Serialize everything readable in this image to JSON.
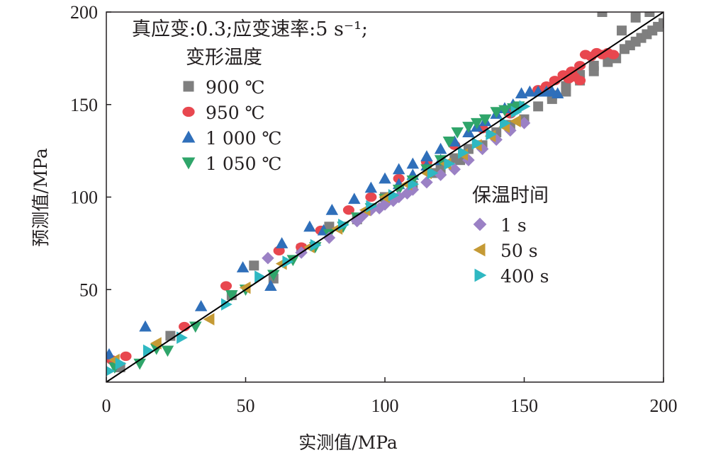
{
  "chart_data": {
    "type": "scatter",
    "title": "",
    "annotation": "真应变:0.3;应变速率:5 s⁻¹;",
    "xlabel": "实测值/MPa",
    "ylabel": "预测值/MPa",
    "xlim": [
      0,
      200
    ],
    "ylim": [
      0,
      200
    ],
    "xticks": [
      0,
      50,
      100,
      150,
      200
    ],
    "xtick_labels": [
      "0",
      "50",
      "100",
      "150",
      "200"
    ],
    "yticks": [
      50,
      100,
      150,
      200
    ],
    "ytick_labels": [
      "50",
      "100",
      "150",
      "200"
    ],
    "grid": false,
    "reference_line": {
      "x": [
        0,
        200
      ],
      "y": [
        0,
        200
      ],
      "color": "#000000"
    },
    "legend_groups": [
      {
        "title": "变形温度",
        "position": "top-left",
        "entries": [
          0,
          1,
          2,
          3
        ]
      },
      {
        "title": "保温时间",
        "position": "middle-right",
        "entries": [
          4,
          5,
          6
        ]
      }
    ],
    "series": [
      {
        "name": "900 ℃",
        "marker": "square",
        "color": "#7f7f7f",
        "points": [
          [
            5,
            8
          ],
          [
            23,
            25
          ],
          [
            45,
            47
          ],
          [
            53,
            63
          ],
          [
            60,
            56
          ],
          [
            70,
            72
          ],
          [
            80,
            84
          ],
          [
            90,
            88
          ],
          [
            100,
            100
          ],
          [
            110,
            106
          ],
          [
            118,
            113
          ],
          [
            127,
            120
          ],
          [
            135,
            128
          ],
          [
            140,
            135
          ],
          [
            145,
            139
          ],
          [
            150,
            142
          ],
          [
            155,
            149
          ],
          [
            160,
            153
          ],
          [
            165,
            157
          ],
          [
            170,
            163
          ],
          [
            175,
            168
          ],
          [
            178,
            200
          ],
          [
            180,
            173
          ],
          [
            183,
            175
          ],
          [
            186,
            180
          ],
          [
            188,
            182
          ],
          [
            190,
            184
          ],
          [
            192,
            186
          ],
          [
            194,
            188
          ],
          [
            196,
            190
          ],
          [
            198,
            192
          ],
          [
            200,
            194
          ],
          [
            185,
            190
          ],
          [
            190,
            197
          ],
          [
            195,
            200
          ],
          [
            160,
            155
          ],
          [
            165,
            160
          ],
          [
            170,
            166
          ],
          [
            175,
            171
          ],
          [
            130,
            126
          ],
          [
            125,
            121
          ],
          [
            120,
            115
          ]
        ]
      },
      {
        "name": "950 ℃",
        "marker": "circle",
        "color": "#e8474f",
        "points": [
          [
            2,
            12
          ],
          [
            7,
            14
          ],
          [
            28,
            30
          ],
          [
            43,
            52
          ],
          [
            62,
            71
          ],
          [
            70,
            73
          ],
          [
            77,
            82
          ],
          [
            87,
            93
          ],
          [
            95,
            100
          ],
          [
            105,
            110
          ],
          [
            115,
            119
          ],
          [
            125,
            128
          ],
          [
            135,
            137
          ],
          [
            145,
            145
          ],
          [
            155,
            158
          ],
          [
            158,
            160
          ],
          [
            161,
            163
          ],
          [
            164,
            166
          ],
          [
            167,
            168
          ],
          [
            170,
            171
          ],
          [
            172,
            177
          ],
          [
            174,
            176
          ],
          [
            176,
            178
          ],
          [
            178,
            177
          ],
          [
            180,
            178
          ],
          [
            182,
            177
          ],
          [
            170,
            163
          ],
          [
            168,
            165
          ],
          [
            166,
            164
          ]
        ]
      },
      {
        "name": "1 000 ℃",
        "marker": "triangle-up",
        "color": "#2f6fba",
        "points": [
          [
            1,
            15
          ],
          [
            14,
            30
          ],
          [
            34,
            41
          ],
          [
            49,
            62
          ],
          [
            59,
            52
          ],
          [
            63,
            75
          ],
          [
            73,
            84
          ],
          [
            81,
            93
          ],
          [
            89,
            99
          ],
          [
            95,
            105
          ],
          [
            100,
            110
          ],
          [
            105,
            115
          ],
          [
            110,
            118
          ],
          [
            115,
            122
          ],
          [
            120,
            126
          ],
          [
            125,
            130
          ],
          [
            130,
            135
          ],
          [
            133,
            138
          ],
          [
            136,
            141
          ],
          [
            140,
            145
          ],
          [
            143,
            148
          ],
          [
            146,
            150
          ],
          [
            149,
            156
          ],
          [
            152,
            157
          ],
          [
            155,
            157
          ],
          [
            158,
            157
          ],
          [
            160,
            157
          ],
          [
            162,
            156
          ],
          [
            105,
            107
          ],
          [
            110,
            112
          ],
          [
            115,
            117
          ],
          [
            120,
            120
          ],
          [
            78,
            82
          ]
        ]
      },
      {
        "name": "1 050 ℃",
        "marker": "triangle-down",
        "color": "#2fa56a",
        "points": [
          [
            3,
            8
          ],
          [
            12,
            10
          ],
          [
            18,
            18
          ],
          [
            22,
            17
          ],
          [
            32,
            30
          ],
          [
            45,
            47
          ],
          [
            50,
            50
          ],
          [
            60,
            58
          ],
          [
            67,
            66
          ],
          [
            75,
            73
          ],
          [
            80,
            80
          ],
          [
            85,
            84
          ],
          [
            90,
            89
          ],
          [
            95,
            94
          ],
          [
            100,
            99
          ],
          [
            105,
            104
          ],
          [
            110,
            109
          ],
          [
            115,
            115
          ],
          [
            120,
            120
          ],
          [
            123,
            130
          ],
          [
            126,
            135
          ],
          [
            130,
            138
          ],
          [
            133,
            140
          ],
          [
            136,
            142
          ],
          [
            140,
            146
          ],
          [
            143,
            147
          ],
          [
            146,
            148
          ],
          [
            148,
            149
          ]
        ]
      },
      {
        "name": "1 s",
        "marker": "diamond",
        "color": "#9b81c5",
        "points": [
          [
            58,
            67
          ],
          [
            70,
            70
          ],
          [
            80,
            78
          ],
          [
            90,
            87
          ],
          [
            95,
            93
          ],
          [
            100,
            96
          ],
          [
            105,
            100
          ],
          [
            110,
            104
          ],
          [
            115,
            108
          ],
          [
            120,
            112
          ],
          [
            125,
            115
          ],
          [
            130,
            120
          ],
          [
            135,
            126
          ],
          [
            140,
            131
          ],
          [
            145,
            136
          ],
          [
            150,
            140
          ],
          [
            92,
            90
          ],
          [
            98,
            94
          ],
          [
            103,
            98
          ],
          [
            108,
            102
          ]
        ]
      },
      {
        "name": "50 s",
        "marker": "triangle-left",
        "color": "#c59a35",
        "points": [
          [
            3,
            12
          ],
          [
            18,
            21
          ],
          [
            37,
            34
          ],
          [
            50,
            51
          ],
          [
            63,
            64
          ],
          [
            73,
            73
          ],
          [
            83,
            83
          ],
          [
            93,
            93
          ],
          [
            100,
            100
          ],
          [
            108,
            107
          ],
          [
            115,
            113
          ],
          [
            122,
            118
          ],
          [
            128,
            123
          ],
          [
            133,
            128
          ],
          [
            138,
            133
          ],
          [
            143,
            138
          ],
          [
            147,
            141
          ]
        ]
      },
      {
        "name": "400 s",
        "marker": "triangle-right",
        "color": "#2fb8c2",
        "points": [
          [
            1,
            6
          ],
          [
            5,
            10
          ],
          [
            15,
            17
          ],
          [
            27,
            24
          ],
          [
            43,
            42
          ],
          [
            55,
            57
          ],
          [
            65,
            65
          ],
          [
            75,
            74
          ],
          [
            85,
            85
          ],
          [
            95,
            95
          ],
          [
            103,
            101
          ],
          [
            110,
            107
          ],
          [
            117,
            113
          ],
          [
            123,
            118
          ],
          [
            128,
            124
          ],
          [
            133,
            129
          ],
          [
            138,
            134
          ],
          [
            143,
            140
          ],
          [
            147,
            146
          ],
          [
            150,
            149
          ]
        ]
      }
    ]
  }
}
